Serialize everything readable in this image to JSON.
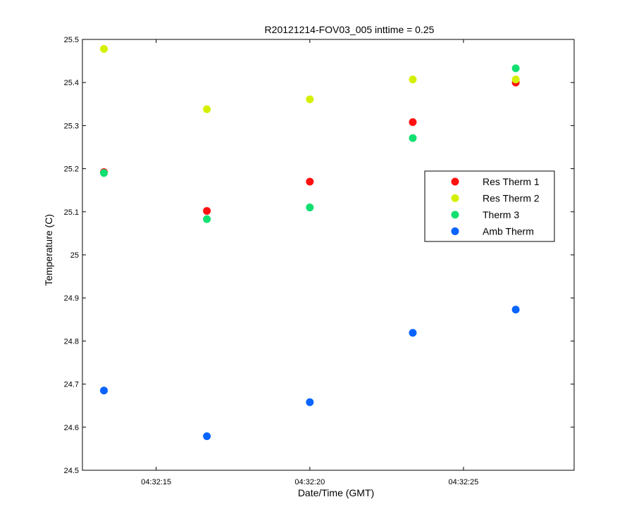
{
  "chart_data": {
    "type": "scatter",
    "title": "R20121214-FOV03_005 inttime = 0.25",
    "xlabel": "Date/Time (GMT)",
    "ylabel": "Temperature (C)",
    "x_unit": "seconds after 04:32:00 GMT",
    "xlim": [
      12.6,
      28.6
    ],
    "ylim": [
      24.5,
      25.5
    ],
    "x_ticks": [
      {
        "value": 15,
        "label": "04:32:15"
      },
      {
        "value": 20,
        "label": "04:32:20"
      },
      {
        "value": 25,
        "label": "04:32:25"
      }
    ],
    "y_ticks": [
      {
        "value": 24.5,
        "label": "24.5"
      },
      {
        "value": 24.6,
        "label": "24.6"
      },
      {
        "value": 24.7,
        "label": "24.7"
      },
      {
        "value": 24.8,
        "label": "24.8"
      },
      {
        "value": 24.9,
        "label": "24.9"
      },
      {
        "value": 25.0,
        "label": "25"
      },
      {
        "value": 25.1,
        "label": "25.1"
      },
      {
        "value": 25.2,
        "label": "25.2"
      },
      {
        "value": 25.3,
        "label": "25.3"
      },
      {
        "value": 25.4,
        "label": "25.4"
      },
      {
        "value": 25.5,
        "label": "25.5"
      }
    ],
    "x": [
      13.3,
      16.65,
      20.0,
      23.35,
      26.7
    ],
    "series": [
      {
        "name": "Res Therm 1",
        "color": "#ff1010",
        "values": [
          25.192,
          25.102,
          25.17,
          25.308,
          25.4
        ]
      },
      {
        "name": "Res Therm 2",
        "color": "#d4f000",
        "values": [
          25.478,
          25.338,
          25.361,
          25.407,
          25.407
        ]
      },
      {
        "name": "Therm 3",
        "color": "#10e070",
        "values": [
          25.19,
          25.083,
          25.11,
          25.271,
          25.433
        ]
      },
      {
        "name": "Amb Therm",
        "color": "#0a64ff",
        "values": [
          24.685,
          24.579,
          24.658,
          24.819,
          24.873
        ]
      }
    ],
    "legend_position": "right",
    "grid": false
  }
}
